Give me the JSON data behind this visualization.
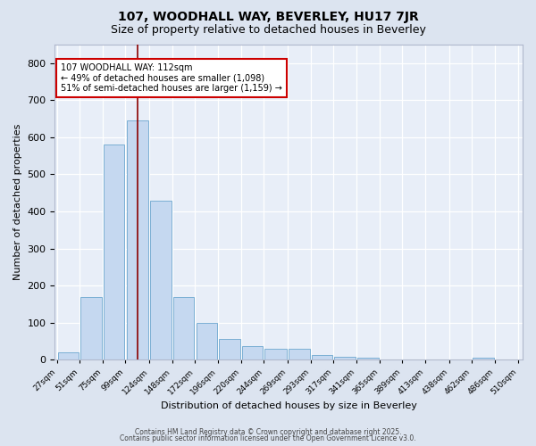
{
  "title1": "107, WOODHALL WAY, BEVERLEY, HU17 7JR",
  "title2": "Size of property relative to detached houses in Beverley",
  "xlabel": "Distribution of detached houses by size in Beverley",
  "ylabel": "Number of detached properties",
  "bar_color": "#c5d8f0",
  "bar_edge_color": "#7bafd4",
  "background_color": "#e8eef8",
  "fig_background_color": "#dce4f0",
  "grid_color": "#ffffff",
  "bin_labels": [
    "27sqm",
    "51sqm",
    "75sqm",
    "99sqm",
    "124sqm",
    "148sqm",
    "172sqm",
    "196sqm",
    "220sqm",
    "244sqm",
    "269sqm",
    "293sqm",
    "317sqm",
    "341sqm",
    "365sqm",
    "389sqm",
    "413sqm",
    "438sqm",
    "462sqm",
    "486sqm",
    "510sqm"
  ],
  "bar_values": [
    20,
    170,
    580,
    645,
    430,
    170,
    100,
    55,
    38,
    30,
    30,
    13,
    8,
    5,
    0,
    0,
    0,
    0,
    5,
    0
  ],
  "bin_starts": [
    27,
    51,
    75,
    99,
    124,
    148,
    172,
    196,
    220,
    244,
    269,
    293,
    317,
    341,
    365,
    389,
    413,
    438,
    462,
    486
  ],
  "bin_ends": [
    51,
    75,
    99,
    124,
    148,
    172,
    196,
    220,
    244,
    269,
    293,
    317,
    341,
    365,
    389,
    413,
    438,
    462,
    486,
    510
  ],
  "bin_edges": [
    27,
    51,
    75,
    99,
    124,
    148,
    172,
    196,
    220,
    244,
    269,
    293,
    317,
    341,
    365,
    389,
    413,
    438,
    462,
    486,
    510
  ],
  "vline_x": 112,
  "vline_color": "#8b0000",
  "annotation_text": "107 WOODHALL WAY: 112sqm\n← 49% of detached houses are smaller (1,098)\n51% of semi-detached houses are larger (1,159) →",
  "annotation_box_color": "#ffffff",
  "annotation_edge_color": "#cc0000",
  "ylim": [
    0,
    850
  ],
  "yticks": [
    0,
    100,
    200,
    300,
    400,
    500,
    600,
    700,
    800
  ],
  "footer1": "Contains HM Land Registry data © Crown copyright and database right 2025.",
  "footer2": "Contains public sector information licensed under the Open Government Licence v3.0."
}
